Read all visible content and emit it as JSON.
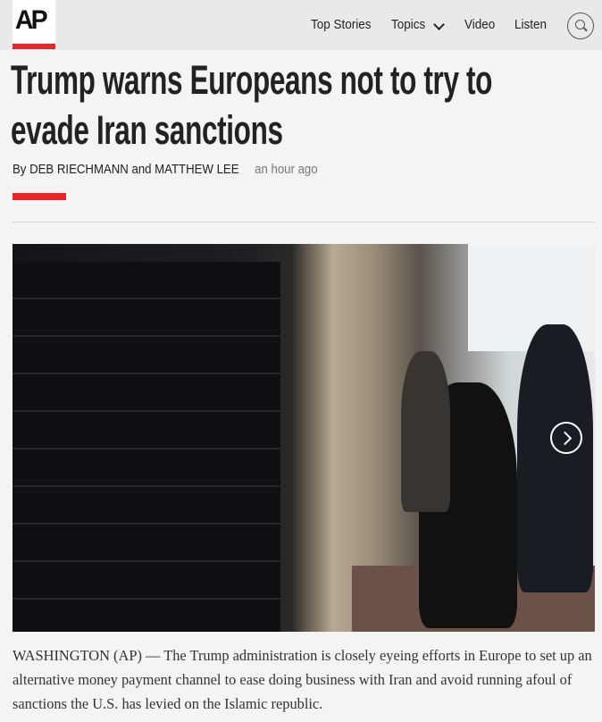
{
  "header": {
    "logo": "AP",
    "nav": [
      {
        "label": "Top Stories"
      },
      {
        "label": "Topics",
        "icon": "chevron-down-icon"
      },
      {
        "label": "Video"
      },
      {
        "label": "Listen"
      }
    ],
    "search_icon": "search-icon"
  },
  "article": {
    "headline": "Trump warns Europeans not to try to evade Iran sanctions",
    "byline": "By DEB RIECHMANN and MATTHEW LEE",
    "timestamp": "an hour ago",
    "accent_color": "#e5262a",
    "photo": {
      "next_icon": "chevron-right-icon"
    },
    "body": "WASHINGTON (AP) — The Trump administration is closely eyeing efforts in Europe to set up an alternative money payment channel to ease doing business with Iran and avoid running afoul of sanctions the U.S. has levied on the Islamic republic."
  }
}
